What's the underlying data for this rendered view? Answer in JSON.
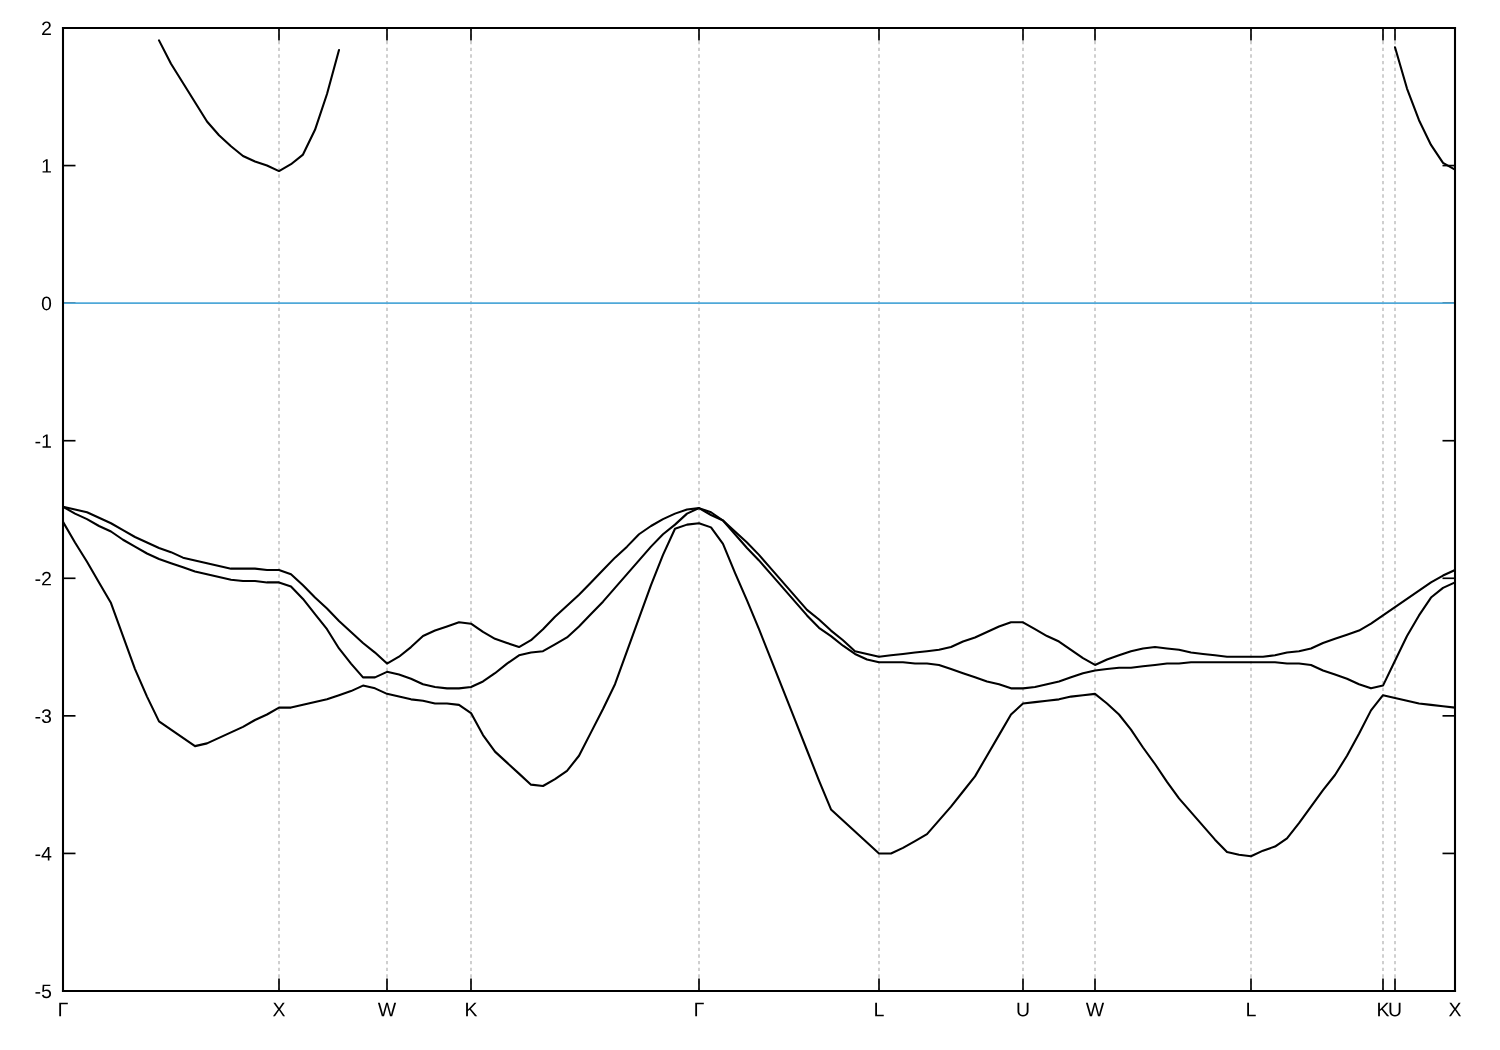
{
  "chart_data": {
    "type": "line",
    "categories": [
      "Γ",
      null,
      null,
      null,
      null,
      null,
      null,
      null,
      null,
      null,
      null,
      null,
      null,
      null,
      null,
      null,
      null,
      null,
      "X",
      null,
      null,
      null,
      null,
      null,
      null,
      null,
      null,
      "W",
      null,
      null,
      null,
      null,
      null,
      null,
      "K",
      null,
      null,
      null,
      null,
      null,
      null,
      null,
      null,
      null,
      null,
      null,
      null,
      null,
      null,
      null,
      null,
      null,
      null,
      "Γ",
      null,
      null,
      null,
      null,
      null,
      null,
      null,
      null,
      null,
      null,
      null,
      null,
      null,
      null,
      "L",
      null,
      null,
      null,
      null,
      null,
      null,
      null,
      null,
      null,
      null,
      null,
      "U",
      null,
      null,
      null,
      null,
      null,
      "W",
      null,
      null,
      null,
      null,
      null,
      null,
      null,
      null,
      null,
      null,
      null,
      null,
      "L",
      null,
      null,
      null,
      null,
      null,
      null,
      null,
      null,
      null,
      null,
      "K",
      "U",
      null,
      null,
      null,
      null,
      "X"
    ],
    "ylim": [
      -5,
      2
    ],
    "yticks": [
      -5,
      -4,
      -3,
      -2,
      -1,
      0,
      1,
      2
    ],
    "grid": "x",
    "line_style": "solid",
    "ref_lines": [
      {
        "axis": "y",
        "value": 0,
        "color": "#4fa8d8"
      }
    ],
    "series": [
      {
        "color": "#000000",
        "values": [
          -1.59,
          -1.74,
          -1.88,
          -2.03,
          -2.18,
          -2.42,
          -2.66,
          -2.86,
          -3.04,
          -3.1,
          -3.16,
          -3.22,
          -3.2,
          -3.16,
          -3.12,
          -3.08,
          -3.03,
          -2.99,
          -2.94,
          -2.94,
          -2.92,
          -2.9,
          -2.88,
          -2.85,
          -2.82,
          -2.78,
          -2.8,
          -2.84,
          -2.86,
          -2.88,
          -2.89,
          -2.91,
          -2.91,
          -2.92,
          -2.98,
          -3.14,
          -3.26,
          -3.34,
          -3.42,
          -3.5,
          -3.51,
          -3.46,
          -3.4,
          -3.29,
          -3.12,
          -2.95,
          -2.77,
          -2.53,
          -2.29,
          -2.05,
          -1.83,
          -1.64,
          -1.61,
          -1.6,
          -1.63,
          -1.75,
          -1.96,
          -2.16,
          -2.37,
          -2.59,
          -2.81,
          -3.03,
          -3.25,
          -3.47,
          -3.68,
          -3.76,
          -3.84,
          -3.92,
          -4.0,
          -4.0,
          -3.96,
          -3.91,
          -3.86,
          -3.76,
          -3.66,
          -3.55,
          -3.44,
          -3.29,
          -3.14,
          -2.99,
          -2.91,
          -2.9,
          -2.89,
          -2.88,
          -2.86,
          -2.85,
          -2.84,
          -2.91,
          -2.99,
          -3.1,
          -3.23,
          -3.35,
          -3.48,
          -3.6,
          -3.7,
          -3.8,
          -3.9,
          -3.99,
          -4.01,
          -4.02,
          -3.98,
          -3.95,
          -3.89,
          -3.78,
          -3.66,
          -3.54,
          -3.43,
          -3.29,
          -3.13,
          -2.96,
          -2.85,
          -2.87,
          -2.89,
          -2.91,
          -2.92,
          -2.93,
          -2.94
        ]
      },
      {
        "color": "#000000",
        "values": [
          -1.48,
          -1.53,
          -1.57,
          -1.62,
          -1.66,
          -1.72,
          -1.77,
          -1.82,
          -1.86,
          -1.89,
          -1.92,
          -1.95,
          -1.97,
          -1.99,
          -2.01,
          -2.02,
          -2.02,
          -2.03,
          -2.03,
          -2.06,
          -2.15,
          -2.26,
          -2.37,
          -2.51,
          -2.62,
          -2.72,
          -2.72,
          -2.68,
          -2.7,
          -2.73,
          -2.77,
          -2.79,
          -2.8,
          -2.8,
          -2.79,
          -2.75,
          -2.69,
          -2.62,
          -2.56,
          -2.54,
          -2.53,
          -2.48,
          -2.43,
          -2.35,
          -2.26,
          -2.17,
          -2.07,
          -1.97,
          -1.87,
          -1.77,
          -1.68,
          -1.61,
          -1.53,
          -1.49,
          -1.54,
          -1.58,
          -1.68,
          -1.78,
          -1.87,
          -1.97,
          -2.07,
          -2.17,
          -2.27,
          -2.36,
          -2.42,
          -2.49,
          -2.55,
          -2.59,
          -2.61,
          -2.61,
          -2.61,
          -2.62,
          -2.62,
          -2.63,
          -2.66,
          -2.69,
          -2.72,
          -2.75,
          -2.77,
          -2.8,
          -2.8,
          -2.79,
          -2.77,
          -2.75,
          -2.72,
          -2.69,
          -2.67,
          -2.66,
          -2.65,
          -2.65,
          -2.64,
          -2.63,
          -2.62,
          -2.62,
          -2.61,
          -2.61,
          -2.61,
          -2.61,
          -2.61,
          -2.61,
          -2.61,
          -2.61,
          -2.62,
          -2.62,
          -2.63,
          -2.67,
          -2.7,
          -2.73,
          -2.77,
          -2.8,
          -2.78,
          -2.6,
          -2.42,
          -2.27,
          -2.14,
          -2.07,
          -2.03
        ]
      },
      {
        "color": "#000000",
        "values": [
          -1.48,
          -1.5,
          -1.52,
          -1.56,
          -1.6,
          -1.65,
          -1.7,
          -1.74,
          -1.78,
          -1.81,
          -1.85,
          -1.87,
          -1.89,
          -1.91,
          -1.93,
          -1.93,
          -1.93,
          -1.94,
          -1.94,
          -1.97,
          -2.05,
          -2.14,
          -2.22,
          -2.31,
          -2.39,
          -2.47,
          -2.54,
          -2.62,
          -2.57,
          -2.5,
          -2.42,
          -2.38,
          -2.35,
          -2.32,
          -2.33,
          -2.39,
          -2.44,
          -2.47,
          -2.5,
          -2.45,
          -2.37,
          -2.28,
          -2.2,
          -2.12,
          -2.03,
          -1.94,
          -1.85,
          -1.77,
          -1.68,
          -1.62,
          -1.57,
          -1.53,
          -1.5,
          -1.49,
          -1.52,
          -1.58,
          -1.66,
          -1.74,
          -1.83,
          -1.93,
          -2.03,
          -2.13,
          -2.23,
          -2.3,
          -2.38,
          -2.45,
          -2.53,
          -2.55,
          -2.57,
          -2.56,
          -2.55,
          -2.54,
          -2.53,
          -2.52,
          -2.5,
          -2.46,
          -2.43,
          -2.39,
          -2.35,
          -2.32,
          -2.32,
          -2.37,
          -2.42,
          -2.46,
          -2.52,
          -2.58,
          -2.63,
          -2.59,
          -2.56,
          -2.53,
          -2.51,
          -2.5,
          -2.51,
          -2.52,
          -2.54,
          -2.55,
          -2.56,
          -2.57,
          -2.57,
          -2.57,
          -2.57,
          -2.56,
          -2.54,
          -2.53,
          -2.51,
          -2.47,
          -2.44,
          -2.41,
          -2.38,
          -2.33,
          -2.27,
          -2.21,
          -2.15,
          -2.09,
          -2.03,
          -1.98,
          -1.94
        ]
      },
      {
        "color": "#000000",
        "values": [
          null,
          null,
          null,
          null,
          null,
          null,
          null,
          null,
          1.91,
          1.74,
          1.6,
          1.46,
          1.32,
          1.22,
          1.14,
          1.07,
          1.03,
          1.0,
          0.96,
          1.01,
          1.08,
          1.26,
          1.52,
          1.84,
          null,
          null,
          null,
          null,
          null,
          null,
          null,
          null,
          null,
          null,
          null,
          null,
          null,
          null,
          null,
          null,
          null,
          null,
          null,
          null,
          null,
          null,
          null,
          null,
          null,
          null,
          null,
          null,
          null,
          null,
          null,
          null,
          null,
          null,
          null,
          null,
          null,
          null,
          null,
          null,
          null,
          null,
          null,
          null,
          null,
          null,
          null,
          null,
          null,
          null,
          null,
          null,
          null,
          null,
          null,
          null,
          null,
          null,
          null,
          null,
          null,
          null,
          null,
          null,
          null,
          null,
          null,
          null,
          null,
          null,
          null,
          null,
          null,
          null,
          null,
          null,
          null,
          null,
          null,
          null,
          null,
          null,
          null,
          null,
          null,
          null,
          null,
          1.86,
          1.56,
          1.33,
          1.15,
          1.02,
          0.97
        ]
      }
    ]
  }
}
